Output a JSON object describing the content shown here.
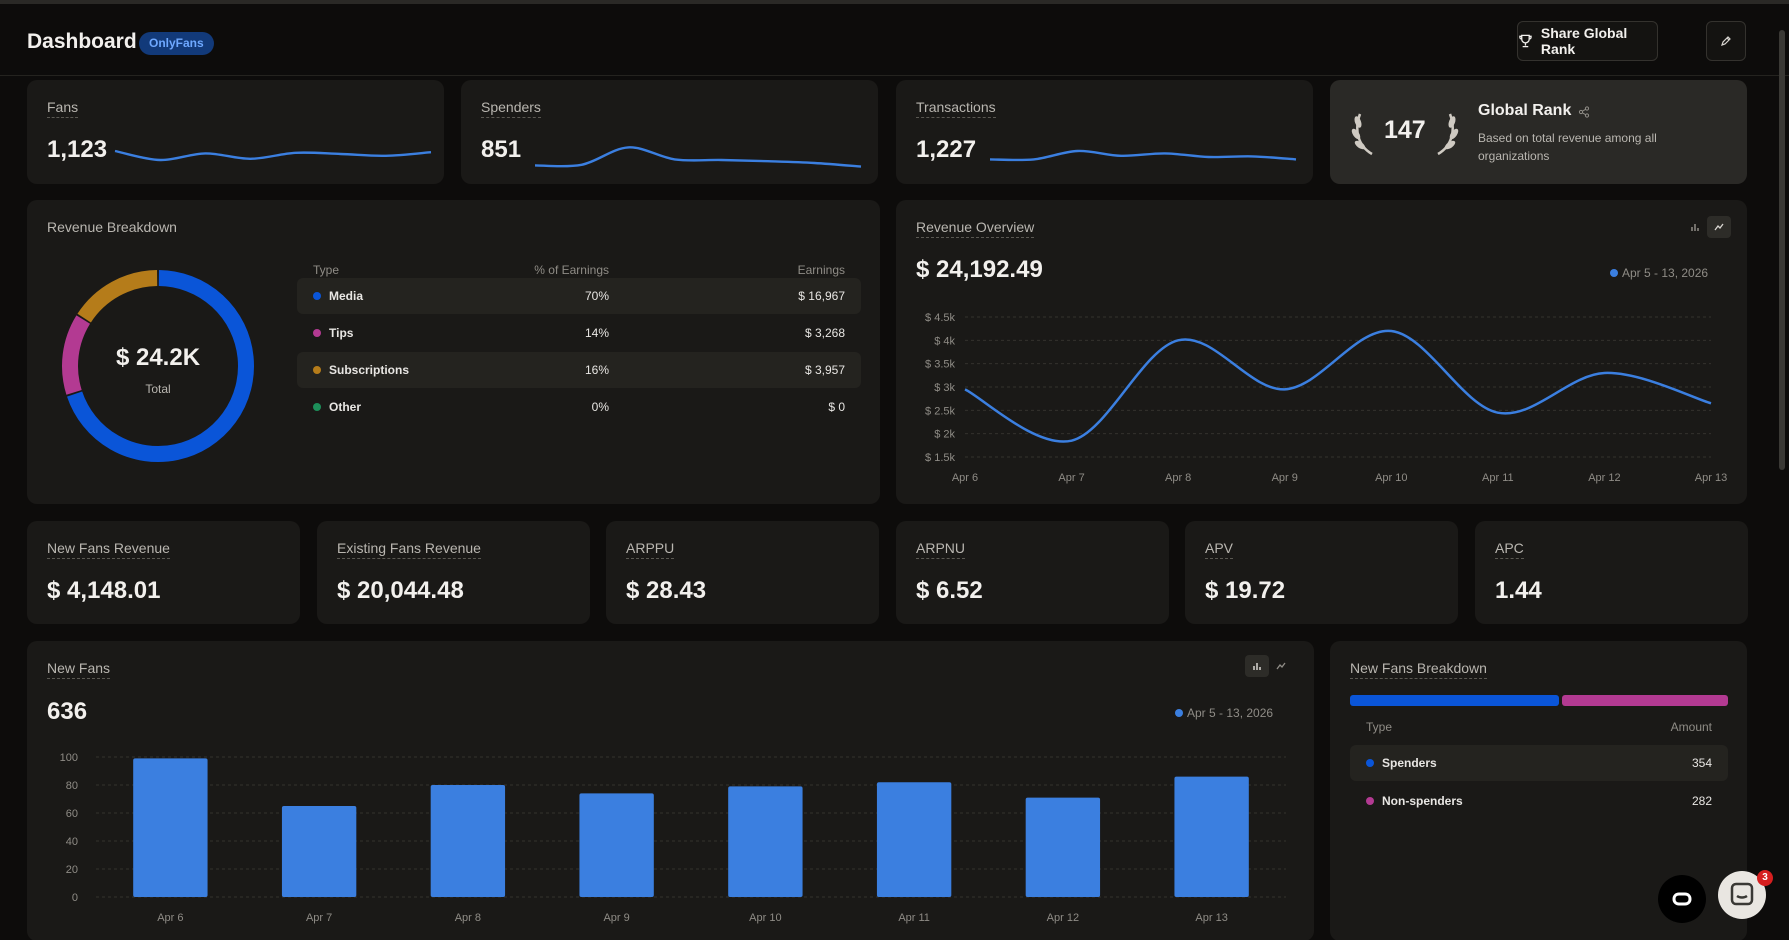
{
  "header": {
    "title": "Dashboard",
    "badge": "OnlyFans",
    "share_label": "Share Global Rank"
  },
  "stats": {
    "fans": {
      "label": "Fans",
      "value": "1,123",
      "spark": [
        3.0,
        1.5,
        2.6,
        1.7,
        2.7,
        2.5,
        2.2,
        2.8
      ]
    },
    "spenders": {
      "label": "Spenders",
      "value": "851",
      "spark": [
        0.6,
        0.7,
        3.6,
        1.6,
        1.5,
        1.3,
        1.0,
        0.4
      ]
    },
    "transactions": {
      "label": "Transactions",
      "value": "1,227",
      "spark": [
        1.6,
        1.6,
        3.0,
        2.2,
        2.6,
        2.0,
        2.1,
        1.6
      ]
    }
  },
  "global_rank": {
    "rank": "147",
    "title": "Global Rank",
    "desc": "Based on total revenue among all organizations"
  },
  "revenue_breakdown": {
    "title": "Revenue Breakdown",
    "total": "$ 24.2K",
    "total_label": "Total",
    "columns": [
      "Type",
      "% of Earnings",
      "Earnings"
    ],
    "rows": [
      {
        "type": "Media",
        "pct": "70%",
        "earnings": "$ 16,967",
        "color": "#0a55d8"
      },
      {
        "type": "Tips",
        "pct": "14%",
        "earnings": "$ 3,268",
        "color": "#b33a92"
      },
      {
        "type": "Subscriptions",
        "pct": "16%",
        "earnings": "$ 3,957",
        "color": "#b57c1a"
      },
      {
        "type": "Other",
        "pct": "0%",
        "earnings": "$ 0",
        "color": "#1d8f5a"
      }
    ]
  },
  "revenue_overview": {
    "title": "Revenue Overview",
    "total": "$ 24,192.49",
    "legend": "Apr 5 - 13, 2026"
  },
  "metrics": [
    {
      "label": "New Fans Revenue",
      "value": "$ 4,148.01"
    },
    {
      "label": "Existing Fans Revenue",
      "value": "$ 20,044.48"
    },
    {
      "label": "ARPPU",
      "value": "$ 28.43"
    },
    {
      "label": "ARPNU",
      "value": "$ 6.52"
    },
    {
      "label": "APV",
      "value": "$ 19.72"
    },
    {
      "label": "APC",
      "value": "1.44"
    }
  ],
  "new_fans": {
    "title": "New Fans",
    "total": "636",
    "legend": "Apr 5 - 13, 2026"
  },
  "new_fans_breakdown": {
    "title": "New Fans Breakdown",
    "columns": [
      "Type",
      "Amount"
    ],
    "rows": [
      {
        "type": "Spenders",
        "amount": "354",
        "color": "#0a55d8"
      },
      {
        "type": "Non-spenders",
        "amount": "282",
        "color": "#b33a92"
      }
    ]
  },
  "chat": {
    "badge": "3"
  },
  "chart_data": [
    {
      "type": "line",
      "title": "Revenue Overview",
      "x": [
        "Apr 6",
        "Apr 7",
        "Apr 8",
        "Apr 9",
        "Apr 10",
        "Apr 11",
        "Apr 12",
        "Apr 13"
      ],
      "series": [
        {
          "values": [
            2950,
            1850,
            4000,
            2950,
            4200,
            2450,
            3300,
            2650
          ]
        }
      ],
      "yticks": [
        "$ 1.5k",
        "$ 2k",
        "$ 2.5k",
        "$ 3k",
        "$ 3.5k",
        "$ 4k",
        "$ 4.5k"
      ],
      "ylim": [
        1500,
        4500
      ],
      "grid": true
    },
    {
      "type": "bar",
      "title": "New Fans",
      "categories": [
        "Apr 6",
        "Apr 7",
        "Apr 8",
        "Apr 9",
        "Apr 10",
        "Apr 11",
        "Apr 12",
        "Apr 13"
      ],
      "values": [
        99,
        65,
        80,
        74,
        79,
        82,
        71,
        86
      ],
      "yticks": [
        "0",
        "20",
        "40",
        "60",
        "80",
        "100"
      ],
      "ylim": [
        0,
        100
      ],
      "grid": true,
      "color": "#3b7fe0"
    }
  ]
}
